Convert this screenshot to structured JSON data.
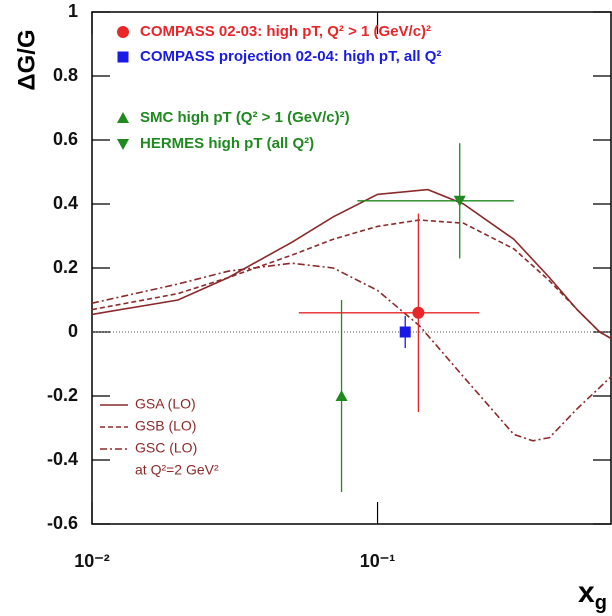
{
  "chart_data": {
    "type": "scatter",
    "ylabel": "ΔG/G",
    "xlabel": {
      "main": "x",
      "sub": "g"
    },
    "xscale": "log",
    "xlim": [
      0.01,
      0.657
    ],
    "ylim": [
      -0.6,
      1
    ],
    "xticks": [
      {
        "value": 0.01,
        "label": "10⁻²"
      },
      {
        "value": 0.1,
        "label": "10⁻¹"
      }
    ],
    "yticks": [
      -0.6,
      -0.4,
      -0.2,
      0,
      0.2,
      0.4,
      0.6,
      0.8,
      1
    ],
    "reference_line": 0,
    "series": [
      {
        "name": "COMPASS 02-03: high pT, Q² > 1 (GeV/c)²",
        "color": "#e8262a",
        "marker": "circle",
        "x": [
          0.139
        ],
        "values": [
          0.06
        ],
        "yerr": [
          0.31
        ],
        "xlow": [
          0.053
        ],
        "xhigh": [
          0.227
        ]
      },
      {
        "name": "COMPASS projection 02-04: high pT, all Q²",
        "color": "#1a1ae6",
        "marker": "square",
        "x": [
          0.125
        ],
        "values": [
          0
        ],
        "yerr": [
          0.05
        ]
      },
      {
        "name": "SMC high pT (Q² > 1 (GeV/c)²)",
        "color": "#1f8a1f",
        "marker": "triangle-up",
        "x": [
          0.0748
        ],
        "values": [
          -0.2
        ],
        "yerr": [
          0.3
        ]
      },
      {
        "name": "HERMES high pT (all Q²)",
        "color": "#1f8a1f",
        "marker": "triangle-down",
        "x": [
          0.194
        ],
        "values": [
          0.41
        ],
        "yerr": [
          0.18
        ],
        "xlow": [
          0.085
        ],
        "xhigh": [
          0.3
        ]
      }
    ],
    "curves": [
      {
        "name": "GSA (LO)",
        "color": "#8b2a2a",
        "dash": "solid",
        "x": [
          0.01,
          0.02,
          0.03,
          0.05,
          0.07,
          0.1,
          0.15,
          0.2,
          0.3,
          0.4,
          0.5,
          0.6,
          0.657
        ],
        "values": [
          0.055,
          0.1,
          0.17,
          0.28,
          0.36,
          0.43,
          0.445,
          0.4,
          0.29,
          0.17,
          0.07,
          0.0,
          -0.02
        ]
      },
      {
        "name": "GSB (LO)",
        "color": "#8b2a2a",
        "dash": "dashed",
        "x": [
          0.01,
          0.02,
          0.03,
          0.05,
          0.07,
          0.1,
          0.14,
          0.2,
          0.3,
          0.4,
          0.5,
          0.6,
          0.657
        ],
        "values": [
          0.07,
          0.12,
          0.17,
          0.24,
          0.29,
          0.33,
          0.35,
          0.34,
          0.26,
          0.16,
          0.07,
          0.0,
          -0.02
        ]
      },
      {
        "name": "GSC (LO)",
        "color": "#8b2a2a",
        "dash": "dashdot",
        "x": [
          0.01,
          0.02,
          0.03,
          0.05,
          0.07,
          0.1,
          0.14,
          0.2,
          0.3,
          0.35,
          0.4,
          0.5,
          0.657
        ],
        "values": [
          0.09,
          0.15,
          0.19,
          0.215,
          0.2,
          0.13,
          0.02,
          -0.14,
          -0.32,
          -0.34,
          -0.33,
          -0.24,
          -0.14
        ]
      }
    ],
    "curve_note": "at Q²=2 GeV²"
  }
}
